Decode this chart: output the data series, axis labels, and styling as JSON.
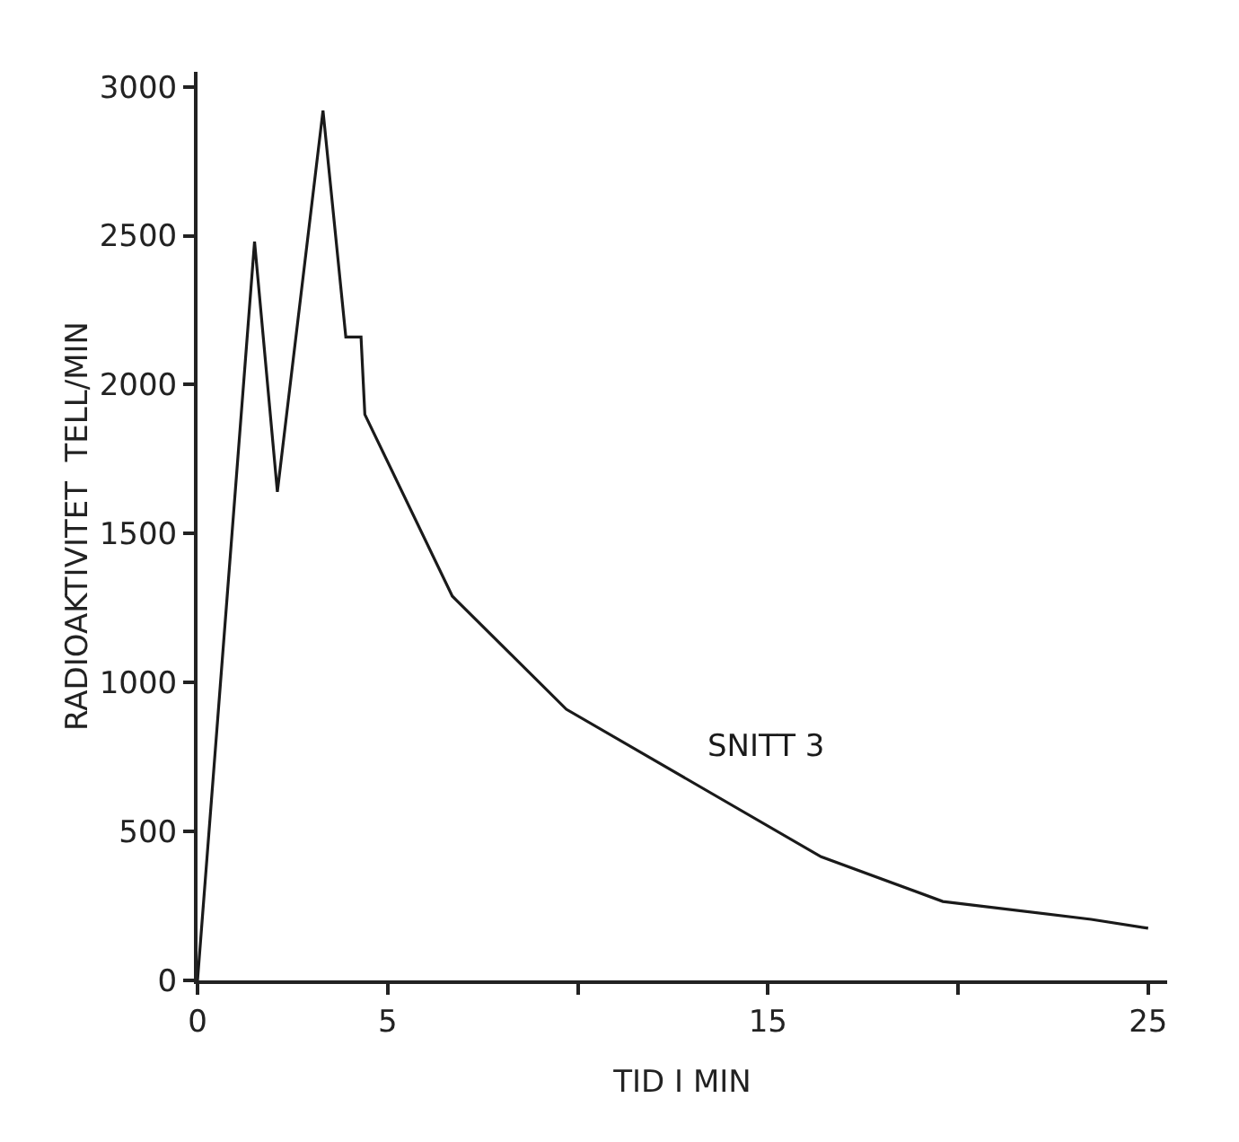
{
  "chart_data": {
    "type": "line",
    "xlabel": "TID I MIN",
    "ylabel": "RADIOAKTIVITET  TELL/MIN",
    "series": [
      {
        "name": "SNITT 3",
        "color": "#1a1a1a",
        "x": [
          0,
          1.5,
          2.1,
          3.3,
          3.9,
          4.3,
          4.4,
          6.7,
          9.7,
          16.4,
          19.6,
          23.5,
          25
        ],
        "values": [
          0,
          2480,
          1640,
          2920,
          2160,
          2160,
          1900,
          1290,
          910,
          415,
          265,
          205,
          175
        ]
      }
    ],
    "xlim": [
      0,
      25.5
    ],
    "ylim": [
      0,
      3050
    ],
    "xticks": [
      0,
      5,
      {
        "value": 10,
        "label": null
      },
      15,
      {
        "value": 20,
        "label": null
      },
      25
    ],
    "yticks": [
      0,
      500,
      1000,
      1500,
      2000,
      2500,
      3000
    ],
    "grid": false,
    "legend": false,
    "marker": "none",
    "line_style": "solid"
  }
}
